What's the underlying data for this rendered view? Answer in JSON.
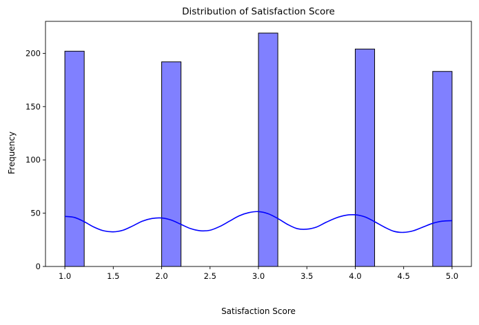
{
  "chart_data": {
    "type": "bar",
    "title": "Distribution of Satisfaction Score",
    "xlabel": "Satisfaction Score",
    "ylabel": "Frequency",
    "xlim": [
      0.8,
      5.2
    ],
    "ylim": [
      0,
      230
    ],
    "x_ticks": [
      "1.0",
      "1.5",
      "2.0",
      "2.5",
      "3.0",
      "3.5",
      "4.0",
      "4.5",
      "5.0"
    ],
    "y_ticks": [
      "0",
      "50",
      "100",
      "150",
      "200"
    ],
    "grid": false,
    "bins": [
      {
        "start": 1.0,
        "end": 1.2,
        "value": 202
      },
      {
        "start": 2.0,
        "end": 2.2,
        "value": 192
      },
      {
        "start": 3.0,
        "end": 3.2,
        "value": 219
      },
      {
        "start": 4.0,
        "end": 4.2,
        "value": 204
      },
      {
        "start": 4.8,
        "end": 5.0,
        "value": 183
      }
    ],
    "kde_curve": {
      "x": [
        1.0,
        1.1,
        1.2,
        1.3,
        1.4,
        1.5,
        1.6,
        1.7,
        1.8,
        1.9,
        2.0,
        2.1,
        2.2,
        2.3,
        2.4,
        2.5,
        2.6,
        2.7,
        2.8,
        2.9,
        3.0,
        3.1,
        3.2,
        3.3,
        3.4,
        3.5,
        3.6,
        3.7,
        3.8,
        3.9,
        4.0,
        4.1,
        4.2,
        4.3,
        4.4,
        4.5,
        4.6,
        4.7,
        4.8,
        4.9,
        5.0
      ],
      "y": [
        47,
        46,
        42,
        37,
        33.5,
        32.5,
        34,
        38,
        42.5,
        45,
        45.5,
        43.5,
        39.5,
        35.5,
        33.5,
        34,
        37.5,
        42.5,
        47.5,
        50.5,
        51.5,
        49.5,
        45,
        39.5,
        35.5,
        35,
        37,
        41.5,
        45.5,
        48,
        48.5,
        46.5,
        42,
        37,
        33,
        32,
        33.5,
        37,
        40.5,
        42.5,
        43
      ]
    },
    "colors": {
      "bar_fill": "#8080ff",
      "bar_edge": "#000000",
      "kde_line": "#0000ff",
      "axis": "#000000"
    }
  }
}
